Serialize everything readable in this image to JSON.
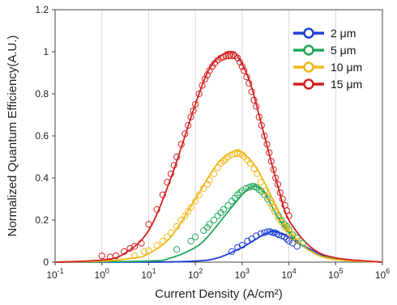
{
  "chart_data": {
    "type": "line",
    "xlabel": "Current Density (A/cm²)",
    "ylabel": "Normalized Quantum Efficiency(A.U.)",
    "x_scale": "log",
    "xlim": [
      0.1,
      1000000
    ],
    "ylim": [
      0,
      1.2
    ],
    "x_ticks": [
      {
        "value": 0.1,
        "base": "10",
        "exp": "-1"
      },
      {
        "value": 1,
        "base": "10",
        "exp": "0"
      },
      {
        "value": 10,
        "base": "10",
        "exp": "1"
      },
      {
        "value": 100,
        "base": "10",
        "exp": "2"
      },
      {
        "value": 1000,
        "base": "10",
        "exp": "3"
      },
      {
        "value": 10000,
        "base": "10",
        "exp": "4"
      },
      {
        "value": 100000,
        "base": "10",
        "exp": "5"
      },
      {
        "value": 1000000,
        "base": "10",
        "exp": "6"
      }
    ],
    "y_ticks": [
      {
        "value": 0,
        "label": "0"
      },
      {
        "value": 0.2,
        "label": "0.2"
      },
      {
        "value": 0.4,
        "label": "0.4"
      },
      {
        "value": 0.6,
        "label": "0.6"
      },
      {
        "value": 0.8,
        "label": "0.8"
      },
      {
        "value": 1.0,
        "label": "1"
      },
      {
        "value": 1.2,
        "label": "1.2"
      }
    ],
    "grid": {
      "vertical": true,
      "horizontal": false
    },
    "legend_position": "top-right",
    "series": [
      {
        "name": "2 μm",
        "color": "#1f3fd6",
        "fit": [
          [
            0.1,
            0
          ],
          [
            10,
            0.0
          ],
          [
            100,
            0.005
          ],
          [
            300,
            0.02
          ],
          [
            1000,
            0.07
          ],
          [
            2000,
            0.11
          ],
          [
            4000,
            0.145
          ],
          [
            6000,
            0.14
          ],
          [
            10000,
            0.12
          ],
          [
            20000,
            0.08
          ],
          [
            50000,
            0.035
          ],
          [
            100000,
            0.015
          ],
          [
            1000000,
            0.0
          ]
        ],
        "points": [
          [
            600,
            0.05
          ],
          [
            800,
            0.07
          ],
          [
            1000,
            0.08
          ],
          [
            1300,
            0.1
          ],
          [
            1600,
            0.11
          ],
          [
            2000,
            0.125
          ],
          [
            2500,
            0.135
          ],
          [
            3000,
            0.14
          ],
          [
            3500,
            0.145
          ],
          [
            4000,
            0.145
          ],
          [
            4500,
            0.14
          ],
          [
            5000,
            0.14
          ],
          [
            5500,
            0.135
          ],
          [
            6000,
            0.13
          ],
          [
            7000,
            0.125
          ],
          [
            8000,
            0.12
          ],
          [
            9000,
            0.11
          ],
          [
            10000,
            0.1
          ],
          [
            12000,
            0.09
          ],
          [
            15000,
            0.075
          ]
        ]
      },
      {
        "name": "5 μm",
        "color": "#22a85a",
        "fit": [
          [
            0.1,
            0
          ],
          [
            10,
            0.005
          ],
          [
            30,
            0.02
          ],
          [
            100,
            0.07
          ],
          [
            200,
            0.13
          ],
          [
            500,
            0.24
          ],
          [
            1000,
            0.32
          ],
          [
            1500,
            0.355
          ],
          [
            2000,
            0.36
          ],
          [
            3000,
            0.33
          ],
          [
            5000,
            0.24
          ],
          [
            10000,
            0.14
          ],
          [
            30000,
            0.05
          ],
          [
            100000,
            0.015
          ],
          [
            1000000,
            0.0
          ]
        ],
        "points": [
          [
            40,
            0.06
          ],
          [
            80,
            0.1
          ],
          [
            100,
            0.12
          ],
          [
            150,
            0.15
          ],
          [
            180,
            0.165
          ],
          [
            200,
            0.18
          ],
          [
            250,
            0.2
          ],
          [
            300,
            0.22
          ],
          [
            350,
            0.235
          ],
          [
            400,
            0.25
          ],
          [
            500,
            0.27
          ],
          [
            600,
            0.29
          ],
          [
            700,
            0.305
          ],
          [
            800,
            0.32
          ],
          [
            900,
            0.33
          ],
          [
            1000,
            0.34
          ],
          [
            1200,
            0.35
          ],
          [
            1400,
            0.355
          ],
          [
            1600,
            0.36
          ],
          [
            1800,
            0.36
          ],
          [
            2000,
            0.355
          ],
          [
            2300,
            0.345
          ],
          [
            2600,
            0.335
          ],
          [
            3000,
            0.32
          ],
          [
            3500,
            0.3
          ],
          [
            4000,
            0.28
          ],
          [
            4500,
            0.26
          ],
          [
            5000,
            0.24
          ],
          [
            6000,
            0.22
          ],
          [
            7000,
            0.2
          ],
          [
            8000,
            0.18
          ],
          [
            9000,
            0.17
          ],
          [
            10000,
            0.155
          ],
          [
            12000,
            0.13
          ],
          [
            15000,
            0.115
          ],
          [
            20000,
            0.09
          ]
        ]
      },
      {
        "name": "10 μm",
        "color": "#f0b81a",
        "fit": [
          [
            0.1,
            0.0
          ],
          [
            1,
            0.005
          ],
          [
            5,
            0.02
          ],
          [
            10,
            0.04
          ],
          [
            30,
            0.12
          ],
          [
            100,
            0.3
          ],
          [
            300,
            0.47
          ],
          [
            700,
            0.53
          ],
          [
            1000,
            0.52
          ],
          [
            2000,
            0.45
          ],
          [
            5000,
            0.28
          ],
          [
            10000,
            0.15
          ],
          [
            30000,
            0.05
          ],
          [
            100000,
            0.012
          ],
          [
            1000000,
            0.0
          ]
        ],
        "points": [
          [
            5,
            0.03
          ],
          [
            8,
            0.05
          ],
          [
            10,
            0.055
          ],
          [
            15,
            0.08
          ],
          [
            20,
            0.1
          ],
          [
            25,
            0.12
          ],
          [
            30,
            0.14
          ],
          [
            40,
            0.17
          ],
          [
            50,
            0.2
          ],
          [
            60,
            0.22
          ],
          [
            70,
            0.24
          ],
          [
            80,
            0.26
          ],
          [
            100,
            0.29
          ],
          [
            120,
            0.32
          ],
          [
            150,
            0.35
          ],
          [
            180,
            0.37
          ],
          [
            200,
            0.39
          ],
          [
            250,
            0.42
          ],
          [
            300,
            0.45
          ],
          [
            350,
            0.47
          ],
          [
            400,
            0.48
          ],
          [
            450,
            0.49
          ],
          [
            500,
            0.5
          ],
          [
            600,
            0.51
          ],
          [
            700,
            0.515
          ],
          [
            800,
            0.515
          ],
          [
            900,
            0.515
          ],
          [
            1000,
            0.51
          ],
          [
            1100,
            0.5
          ],
          [
            1300,
            0.485
          ],
          [
            1500,
            0.47
          ],
          [
            1800,
            0.445
          ],
          [
            2100,
            0.42
          ],
          [
            2500,
            0.38
          ],
          [
            3000,
            0.34
          ],
          [
            3500,
            0.31
          ],
          [
            4000,
            0.28
          ],
          [
            4500,
            0.26
          ],
          [
            5000,
            0.24
          ],
          [
            6000,
            0.21
          ],
          [
            7000,
            0.19
          ],
          [
            8000,
            0.17
          ],
          [
            9000,
            0.16
          ],
          [
            10000,
            0.145
          ],
          [
            12000,
            0.12
          ],
          [
            15000,
            0.1
          ]
        ]
      },
      {
        "name": "15 μm",
        "color": "#d42020",
        "fit": [
          [
            0.1,
            0.0
          ],
          [
            1,
            0.01
          ],
          [
            3,
            0.04
          ],
          [
            10,
            0.15
          ],
          [
            30,
            0.4
          ],
          [
            100,
            0.75
          ],
          [
            200,
            0.92
          ],
          [
            400,
            0.99
          ],
          [
            600,
            1.0
          ],
          [
            800,
            0.98
          ],
          [
            1500,
            0.85
          ],
          [
            3000,
            0.6
          ],
          [
            6000,
            0.35
          ],
          [
            10000,
            0.2
          ],
          [
            30000,
            0.07
          ],
          [
            100000,
            0.02
          ],
          [
            1000000,
            0.0
          ]
        ],
        "points": [
          [
            1,
            0.03
          ],
          [
            1.5,
            0.025
          ],
          [
            2,
            0.03
          ],
          [
            3,
            0.05
          ],
          [
            4,
            0.065
          ],
          [
            5,
            0.075
          ],
          [
            7,
            0.09
          ],
          [
            10,
            0.18
          ],
          [
            15,
            0.25
          ],
          [
            20,
            0.32
          ],
          [
            25,
            0.38
          ],
          [
            30,
            0.42
          ],
          [
            35,
            0.46
          ],
          [
            40,
            0.5
          ],
          [
            50,
            0.56
          ],
          [
            60,
            0.61
          ],
          [
            70,
            0.65
          ],
          [
            80,
            0.69
          ],
          [
            90,
            0.72
          ],
          [
            100,
            0.75
          ],
          [
            120,
            0.8
          ],
          [
            140,
            0.84
          ],
          [
            160,
            0.87
          ],
          [
            180,
            0.89
          ],
          [
            200,
            0.91
          ],
          [
            230,
            0.93
          ],
          [
            260,
            0.945
          ],
          [
            300,
            0.96
          ],
          [
            350,
            0.97
          ],
          [
            400,
            0.975
          ],
          [
            450,
            0.98
          ],
          [
            500,
            0.98
          ],
          [
            550,
            0.985
          ],
          [
            600,
            0.98
          ],
          [
            650,
            0.985
          ],
          [
            700,
            0.98
          ],
          [
            800,
            0.97
          ],
          [
            900,
            0.95
          ],
          [
            1000,
            0.93
          ],
          [
            1100,
            0.91
          ],
          [
            1250,
            0.88
          ],
          [
            1400,
            0.85
          ],
          [
            1600,
            0.81
          ],
          [
            1800,
            0.77
          ],
          [
            2000,
            0.74
          ],
          [
            2300,
            0.69
          ],
          [
            2600,
            0.65
          ],
          [
            3000,
            0.6
          ],
          [
            3400,
            0.56
          ],
          [
            3800,
            0.52
          ],
          [
            4200,
            0.48
          ],
          [
            4700,
            0.44
          ],
          [
            5200,
            0.4
          ],
          [
            5800,
            0.37
          ],
          [
            6500,
            0.33
          ],
          [
            7300,
            0.3
          ],
          [
            8200,
            0.27
          ],
          [
            9000,
            0.245
          ],
          [
            10000,
            0.22
          ]
        ]
      }
    ]
  }
}
